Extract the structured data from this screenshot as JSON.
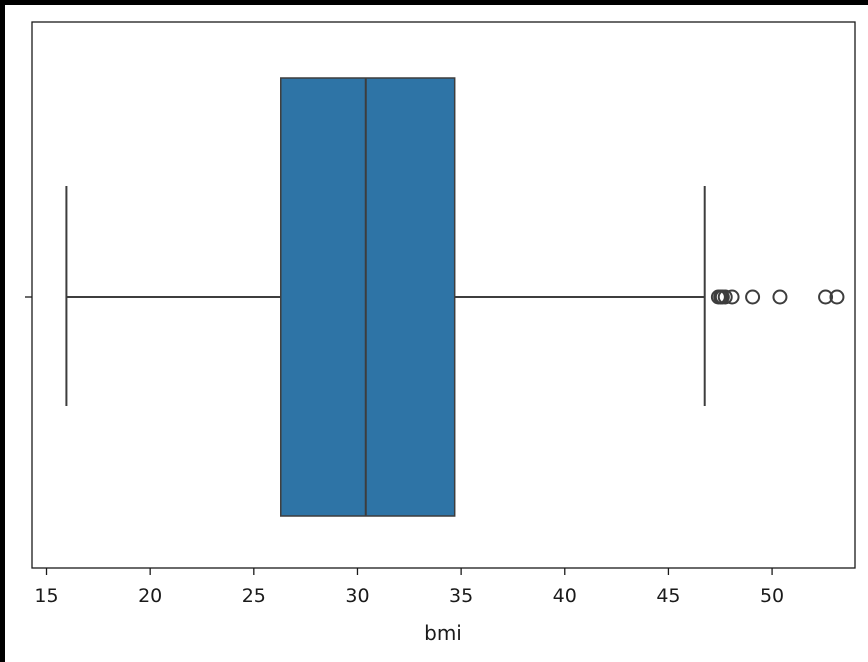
{
  "chart_data": {
    "type": "box",
    "orientation": "horizontal",
    "title": "",
    "xlabel": "bmi",
    "ylabel": "",
    "xlim": [
      14.3,
      54.0
    ],
    "xticks": [
      15,
      20,
      25,
      30,
      35,
      40,
      45,
      50
    ],
    "grid": false,
    "box_color": "#2e74a6",
    "line_color": "#3d3d3d",
    "box": {
      "whisker_low": 15.96,
      "q1": 26.3,
      "median": 30.4,
      "q3": 34.69,
      "whisker_high": 46.75
    },
    "outliers": [
      47.41,
      47.52,
      47.6,
      47.74,
      48.07,
      49.06,
      50.38,
      52.58,
      53.13
    ]
  }
}
